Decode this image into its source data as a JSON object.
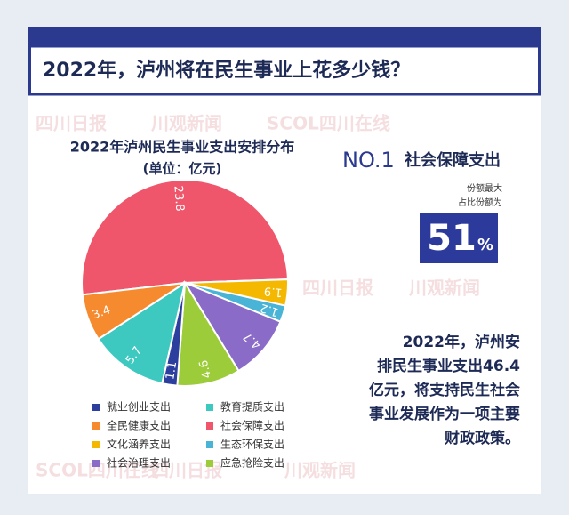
{
  "header": {
    "title": "2022年，泸州将在民生事业上花多少钱？"
  },
  "watermarks": [
    "四川日报",
    "川观新闻",
    "SCOL四川在线"
  ],
  "chart_data": {
    "type": "pie",
    "title": "2022年泸州民生事业支出安排分布",
    "subtitle": "(单位：亿元)",
    "categories": [
      "社会保障支出",
      "文化涵养支出",
      "生态环保支出",
      "社会治理支出",
      "应急抢险支出",
      "就业创业支出",
      "教育提质支出",
      "全民健康支出"
    ],
    "values": [
      23.8,
      1.9,
      1.2,
      4.7,
      4.6,
      1.1,
      5.7,
      3.4
    ],
    "colors": [
      "#f0566b",
      "#f5b800",
      "#4ab4d6",
      "#8a6cc8",
      "#9dcc3a",
      "#2d3f9e",
      "#3ec9c0",
      "#f58a2e"
    ]
  },
  "highlight": {
    "rank": "NO.1",
    "name": "社会保障支出",
    "note": [
      "份额最大",
      "占比份额为"
    ],
    "number": "51",
    "unit": "%"
  },
  "summary": [
    "2022年，泸州安",
    "排民生事业支出46.4",
    "亿元，将支持民生社会",
    "事业发展作为一项主要",
    "财政政策。"
  ]
}
